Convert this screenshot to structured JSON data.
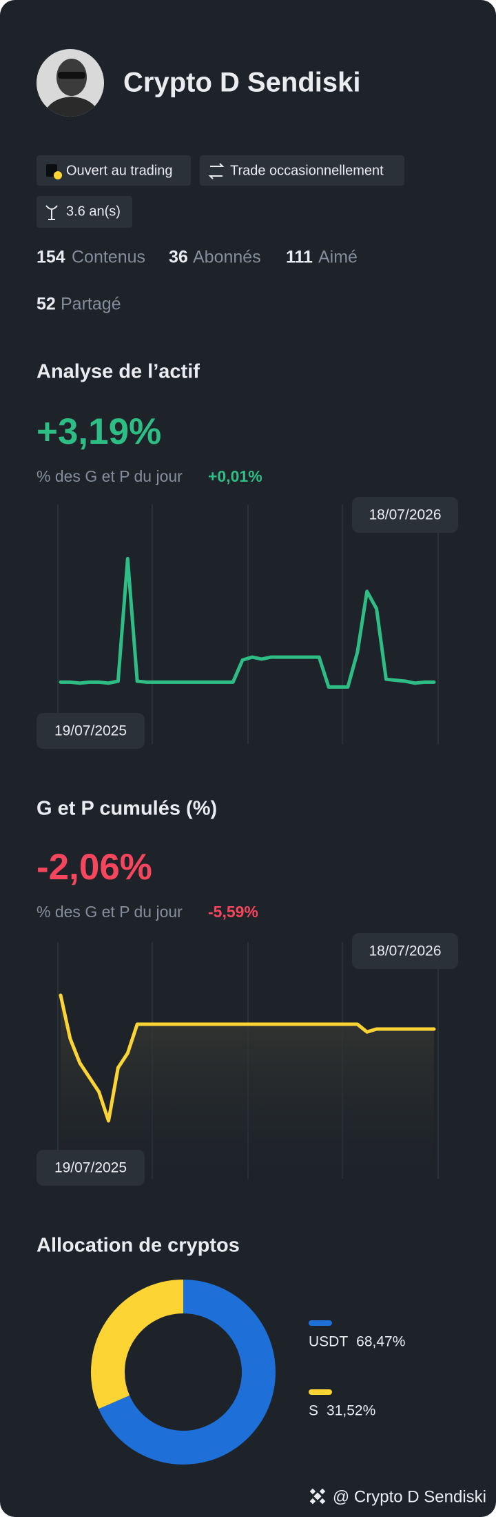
{
  "profile": {
    "name": "Crypto D Sendiski",
    "tags": [
      "Ouvert au trading",
      "Trade occasionnellement",
      "3.6 an(s)"
    ],
    "stats": [
      {
        "value": 154,
        "label": "Contenus"
      },
      {
        "value": 36,
        "label": "Abonnés"
      },
      {
        "value": 111,
        "label": "Aimé"
      },
      {
        "value": 52,
        "label": "Partagé"
      }
    ]
  },
  "chart_data": [
    {
      "type": "line",
      "title": "Analyse de l’actif",
      "headline": "+3,19%",
      "subtitle": "% des G et P du jour",
      "daily_change": "+0,01%",
      "start_label": "19/07/2025",
      "end_label": "18/07/2026",
      "color": "#2ebd85",
      "area": false,
      "ylim": [
        0,
        238
      ],
      "values": [
        54,
        54,
        53,
        54,
        54,
        53,
        55,
        182,
        55,
        54,
        54,
        54,
        54,
        54,
        54,
        54,
        54,
        54,
        54,
        77,
        80,
        78,
        80,
        80,
        80,
        80,
        80,
        80,
        49,
        49,
        49,
        85,
        148,
        130,
        57,
        56,
        55,
        53,
        54,
        54
      ]
    },
    {
      "type": "line",
      "title": "G et P cumulés (%)",
      "headline": "-2,06%",
      "subtitle": "% des G et P du jour",
      "daily_change": "-5,59%",
      "start_label": "19/07/2025",
      "end_label": "18/07/2026",
      "color": "#fcd535",
      "area": true,
      "ylim": [
        0,
        245
      ],
      "values": [
        190,
        145,
        120,
        105,
        90,
        60,
        115,
        130,
        160,
        160,
        160,
        160,
        160,
        160,
        160,
        160,
        160,
        160,
        160,
        160,
        160,
        160,
        160,
        160,
        160,
        160,
        160,
        160,
        160,
        160,
        160,
        160,
        152,
        155,
        155,
        155,
        155,
        155,
        155,
        155
      ]
    },
    {
      "type": "pie",
      "title": "Allocation de cryptos",
      "donut": true,
      "categories": [
        "USDT",
        "S"
      ],
      "values": [
        68.47,
        31.52
      ],
      "value_labels": [
        "68,47%",
        "31,52%"
      ],
      "colors": [
        "#1f6fd8",
        "#fcd535"
      ]
    }
  ],
  "footer": "@ Crypto D Sendiski"
}
